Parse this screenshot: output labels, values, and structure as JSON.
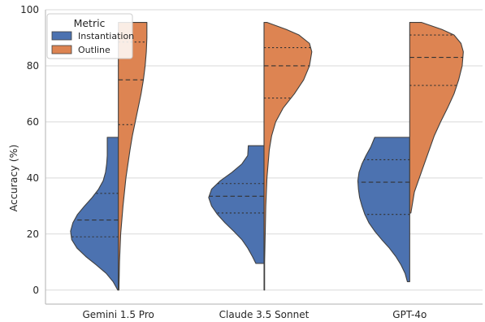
{
  "chart_data": {
    "type": "violin",
    "categories": [
      "Gemini 1.5 Pro",
      "Claude 3.5 Sonnet",
      "GPT-4o"
    ],
    "ylabel": "Accuracy (%)",
    "xlabel": "",
    "ylim": [
      -5,
      100
    ],
    "yticks": [
      0,
      20,
      40,
      60,
      80,
      100
    ],
    "grid": "horizontal",
    "legend": {
      "title": "Metric",
      "placement": "top-left",
      "entries": [
        "Instantiation",
        "Outline"
      ]
    },
    "series": [
      {
        "name": "Instantiation",
        "color": "#4c72b0",
        "side": "left",
        "violins": [
          {
            "min": 0,
            "max": 54.5,
            "q1": 19,
            "median": 25,
            "q3": 34.5,
            "profile": [
              [
                0,
                0.01
              ],
              [
                3,
                0.09
              ],
              [
                6,
                0.21
              ],
              [
                9,
                0.38
              ],
              [
                12,
                0.56
              ],
              [
                15,
                0.71
              ],
              [
                18,
                0.8
              ],
              [
                21,
                0.82
              ],
              [
                24,
                0.78
              ],
              [
                27,
                0.7
              ],
              [
                30,
                0.58
              ],
              [
                33,
                0.45
              ],
              [
                36,
                0.34
              ],
              [
                39,
                0.26
              ],
              [
                42,
                0.22
              ],
              [
                45,
                0.2
              ],
              [
                48,
                0.19
              ],
              [
                51,
                0.19
              ],
              [
                54.5,
                0.19
              ]
            ]
          },
          {
            "min": 9.5,
            "max": 51.5,
            "q1": 27.5,
            "median": 33.5,
            "q3": 38,
            "profile": [
              [
                9.5,
                0.14
              ],
              [
                12,
                0.2
              ],
              [
                15,
                0.28
              ],
              [
                18,
                0.38
              ],
              [
                21,
                0.52
              ],
              [
                24,
                0.67
              ],
              [
                27,
                0.8
              ],
              [
                30,
                0.9
              ],
              [
                33,
                0.95
              ],
              [
                36,
                0.9
              ],
              [
                39,
                0.75
              ],
              [
                42,
                0.55
              ],
              [
                45,
                0.38
              ],
              [
                48,
                0.28
              ],
              [
                51.5,
                0.27
              ]
            ]
          },
          {
            "min": 3,
            "max": 54.5,
            "q1": 27,
            "median": 38.5,
            "q3": 46.5,
            "profile": [
              [
                3,
                0.04
              ],
              [
                6,
                0.08
              ],
              [
                9,
                0.15
              ],
              [
                12,
                0.24
              ],
              [
                15,
                0.35
              ],
              [
                18,
                0.48
              ],
              [
                21,
                0.6
              ],
              [
                24,
                0.7
              ],
              [
                27,
                0.77
              ],
              [
                30,
                0.82
              ],
              [
                33,
                0.86
              ],
              [
                36,
                0.88
              ],
              [
                39,
                0.89
              ],
              [
                42,
                0.87
              ],
              [
                45,
                0.82
              ],
              [
                48,
                0.75
              ],
              [
                51,
                0.67
              ],
              [
                54.5,
                0.6
              ]
            ]
          }
        ]
      },
      {
        "name": "Outline",
        "color": "#dd8452",
        "side": "right",
        "violins": [
          {
            "min": 0,
            "max": 95.5,
            "q1": 59,
            "median": 75,
            "q3": 88.5,
            "profile": [
              [
                0,
                0.01
              ],
              [
                10,
                0.02
              ],
              [
                20,
                0.04
              ],
              [
                30,
                0.08
              ],
              [
                40,
                0.13
              ],
              [
                50,
                0.2
              ],
              [
                55,
                0.24
              ],
              [
                60,
                0.29
              ],
              [
                65,
                0.34
              ],
              [
                70,
                0.39
              ],
              [
                75,
                0.43
              ],
              [
                80,
                0.46
              ],
              [
                85,
                0.48
              ],
              [
                90,
                0.49
              ],
              [
                95.5,
                0.49
              ]
            ]
          },
          {
            "min": 0,
            "max": 95.5,
            "q1": 68.5,
            "median": 80,
            "q3": 86.5,
            "profile": [
              [
                0,
                0.01
              ],
              [
                10,
                0.01
              ],
              [
                20,
                0.02
              ],
              [
                30,
                0.03
              ],
              [
                40,
                0.05
              ],
              [
                50,
                0.09
              ],
              [
                55,
                0.13
              ],
              [
                60,
                0.2
              ],
              [
                65,
                0.33
              ],
              [
                70,
                0.52
              ],
              [
                75,
                0.68
              ],
              [
                80,
                0.78
              ],
              [
                85,
                0.82
              ],
              [
                88,
                0.78
              ],
              [
                91,
                0.6
              ],
              [
                93,
                0.38
              ],
              [
                95.5,
                0.05
              ]
            ]
          },
          {
            "min": 27.5,
            "max": 95.5,
            "q1": 73,
            "median": 83,
            "q3": 91,
            "profile": [
              [
                27.5,
                0.02
              ],
              [
                35,
                0.08
              ],
              [
                45,
                0.25
              ],
              [
                55,
                0.42
              ],
              [
                60,
                0.53
              ],
              [
                65,
                0.65
              ],
              [
                70,
                0.76
              ],
              [
                75,
                0.84
              ],
              [
                80,
                0.9
              ],
              [
                85,
                0.92
              ],
              [
                88,
                0.88
              ],
              [
                91,
                0.76
              ],
              [
                93,
                0.55
              ],
              [
                95.5,
                0.2
              ]
            ]
          }
        ]
      }
    ]
  }
}
